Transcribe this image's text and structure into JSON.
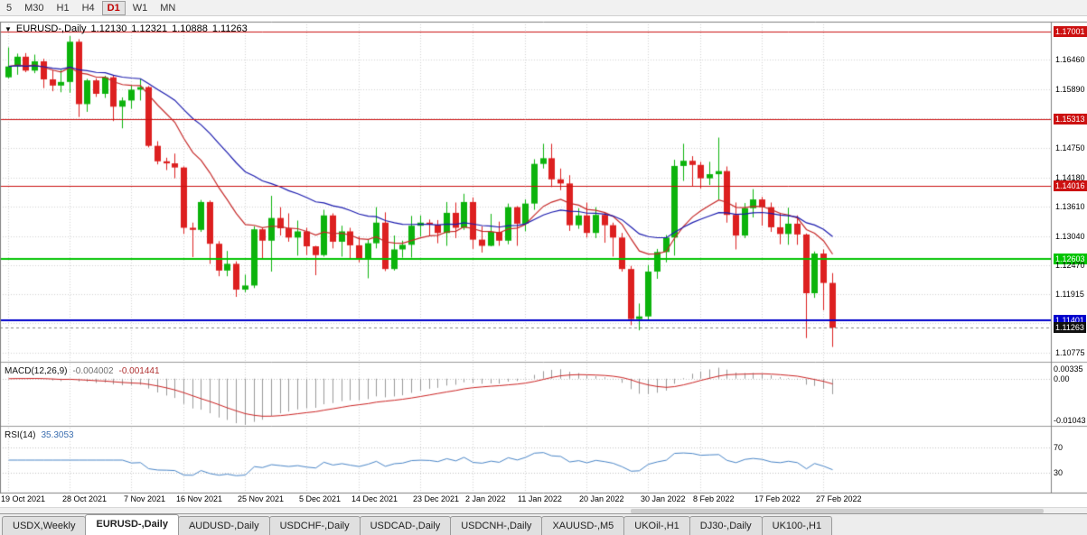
{
  "toolbar": {
    "timeframes": [
      {
        "label": "5",
        "active": false
      },
      {
        "label": "M30",
        "active": false
      },
      {
        "label": "H1",
        "active": false
      },
      {
        "label": "H4",
        "active": false
      },
      {
        "label": "D1",
        "active": true
      },
      {
        "label": "W1",
        "active": false
      },
      {
        "label": "MN",
        "active": false
      }
    ]
  },
  "chart": {
    "marker_icon": "▼",
    "title": "EURUSD-,Daily",
    "open": "1.12130",
    "high": "1.12321",
    "low": "1.10888",
    "close": "1.11263"
  },
  "price_axis": {
    "labels": [
      {
        "text": "1.17001",
        "price": 1.17001,
        "style": "red"
      },
      {
        "text": "1.16460",
        "price": 1.1646,
        "style": "plain"
      },
      {
        "text": "1.15890",
        "price": 1.1589,
        "style": "plain"
      },
      {
        "text": "1.15313",
        "price": 1.15313,
        "style": "red"
      },
      {
        "text": "1.14750",
        "price": 1.1475,
        "style": "plain"
      },
      {
        "text": "1.14180",
        "price": 1.1418,
        "style": "plain"
      },
      {
        "text": "1.14016",
        "price": 1.14016,
        "style": "red"
      },
      {
        "text": "1.13610",
        "price": 1.1361,
        "style": "plain"
      },
      {
        "text": "1.13040",
        "price": 1.1304,
        "style": "plain"
      },
      {
        "text": "1.12603",
        "price": 1.12603,
        "style": "green"
      },
      {
        "text": "1.12470",
        "price": 1.1247,
        "style": "plain"
      },
      {
        "text": "1.11915",
        "price": 1.11915,
        "style": "plain"
      },
      {
        "text": "1.11401",
        "price": 1.11401,
        "style": "blue"
      },
      {
        "text": "1.11263",
        "price": 1.11263,
        "style": "current"
      },
      {
        "text": "1.10775",
        "price": 1.10775,
        "style": "plain"
      }
    ],
    "grid_prices": [
      1.1646,
      1.1589,
      1.1532,
      1.1475,
      1.1418,
      1.1361,
      1.1304,
      1.1247,
      1.11915,
      1.11345,
      1.10775
    ]
  },
  "lines": {
    "horizontal": [
      {
        "price": 1.17001,
        "color": "#cc1111",
        "width": 1
      },
      {
        "price": 1.15313,
        "color": "#cc1111",
        "width": 1
      },
      {
        "price": 1.14016,
        "color": "#cc1111",
        "width": 1
      },
      {
        "price": 1.12603,
        "color": "#00c400",
        "width": 2
      },
      {
        "price": 1.11401,
        "color": "#0000cc",
        "width": 2
      }
    ],
    "current_price": {
      "value": 1.11263,
      "text": "1.11263"
    }
  },
  "macd": {
    "name": "MACD(12,26,9)",
    "value": "-0.004002",
    "signal": "-0.001441",
    "axis": {
      "max_text": "0.00335",
      "zero_text": "0.00",
      "min_text": "-0.01043",
      "max": 0.00335,
      "min": -0.01043
    },
    "colors": {
      "histogram": "#999999",
      "signal": "#cc2222"
    }
  },
  "rsi": {
    "name": "RSI(14)",
    "value": "35.3053",
    "color": "#4a86c8",
    "levels": [
      {
        "text": "70",
        "value": 70
      },
      {
        "text": "30",
        "value": 30
      }
    ]
  },
  "date_axis": {
    "ticks": [
      {
        "label": "19 Oct 2021",
        "index": 0
      },
      {
        "label": "28 Oct 2021",
        "index": 7
      },
      {
        "label": "7 Nov 2021",
        "index": 14
      },
      {
        "label": "16 Nov 2021",
        "index": 20
      },
      {
        "label": "25 Nov 2021",
        "index": 27
      },
      {
        "label": "5 Dec 2021",
        "index": 34
      },
      {
        "label": "14 Dec 2021",
        "index": 40
      },
      {
        "label": "23 Dec 2021",
        "index": 47
      },
      {
        "label": "2 Jan 2022",
        "index": 53
      },
      {
        "label": "11 Jan 2022",
        "index": 59
      },
      {
        "label": "20 Jan 2022",
        "index": 66
      },
      {
        "label": "30 Jan 2022",
        "index": 73
      },
      {
        "label": "8 Feb 2022",
        "index": 79
      },
      {
        "label": "17 Feb 2022",
        "index": 86
      },
      {
        "label": "27 Feb 2022",
        "index": 93
      }
    ]
  },
  "tabs": [
    {
      "label": "USDX,Weekly",
      "active": false
    },
    {
      "label": "EURUSD-,Daily",
      "active": true
    },
    {
      "label": "AUDUSD-,Daily",
      "active": false
    },
    {
      "label": "USDCHF-,Daily",
      "active": false
    },
    {
      "label": "USDCAD-,Daily",
      "active": false
    },
    {
      "label": "USDCNH-,Daily",
      "active": false
    },
    {
      "label": "XAUUSD-,M5",
      "active": false
    },
    {
      "label": "UKOil-,H1",
      "active": false
    },
    {
      "label": "DJ30-,Daily",
      "active": false
    },
    {
      "label": "UK100-,H1",
      "active": false
    }
  ],
  "chart_data": {
    "type": "candlestick",
    "symbol": "EURUSD-",
    "timeframe": "Daily",
    "y_range": [
      1.106,
      1.172
    ],
    "up_color": "#0cb30c",
    "down_color": "#dd2020",
    "ma_lines": [
      {
        "period": 12,
        "color": "#c62828"
      },
      {
        "period": 26,
        "color": "#1a1aae"
      }
    ],
    "dates": [
      "2021-10-19",
      "2021-10-20",
      "2021-10-21",
      "2021-10-22",
      "2021-10-25",
      "2021-10-26",
      "2021-10-27",
      "2021-10-28",
      "2021-10-29",
      "2021-11-01",
      "2021-11-02",
      "2021-11-03",
      "2021-11-04",
      "2021-11-05",
      "2021-11-08",
      "2021-11-09",
      "2021-11-10",
      "2021-11-11",
      "2021-11-12",
      "2021-11-15",
      "2021-11-16",
      "2021-11-17",
      "2021-11-18",
      "2021-11-19",
      "2021-11-22",
      "2021-11-23",
      "2021-11-24",
      "2021-11-25",
      "2021-11-26",
      "2021-11-29",
      "2021-11-30",
      "2021-12-01",
      "2021-12-02",
      "2021-12-03",
      "2021-12-06",
      "2021-12-07",
      "2021-12-08",
      "2021-12-09",
      "2021-12-10",
      "2021-12-13",
      "2021-12-14",
      "2021-12-15",
      "2021-12-16",
      "2021-12-17",
      "2021-12-20",
      "2021-12-21",
      "2021-12-22",
      "2021-12-23",
      "2021-12-27",
      "2021-12-28",
      "2021-12-29",
      "2021-12-30",
      "2021-12-31",
      "2022-01-03",
      "2022-01-04",
      "2022-01-05",
      "2022-01-06",
      "2022-01-07",
      "2022-01-10",
      "2022-01-11",
      "2022-01-12",
      "2022-01-13",
      "2022-01-14",
      "2022-01-17",
      "2022-01-18",
      "2022-01-19",
      "2022-01-20",
      "2022-01-21",
      "2022-01-24",
      "2022-01-25",
      "2022-01-26",
      "2022-01-27",
      "2022-01-28",
      "2022-01-31",
      "2022-02-01",
      "2022-02-02",
      "2022-02-03",
      "2022-02-04",
      "2022-02-07",
      "2022-02-08",
      "2022-02-09",
      "2022-02-10",
      "2022-02-11",
      "2022-02-14",
      "2022-02-15",
      "2022-02-16",
      "2022-02-17",
      "2022-02-18",
      "2022-02-21",
      "2022-02-22",
      "2022-02-23",
      "2022-02-24",
      "2022-02-25",
      "2022-02-28",
      "2022-03-01"
    ],
    "ohlc": [
      [
        1.1612,
        1.167,
        1.161,
        1.1633
      ],
      [
        1.1633,
        1.1658,
        1.1617,
        1.1652
      ],
      [
        1.1652,
        1.1659,
        1.1622,
        1.1625
      ],
      [
        1.1625,
        1.1656,
        1.162,
        1.1643
      ],
      [
        1.1643,
        1.1648,
        1.1591,
        1.1608
      ],
      [
        1.1608,
        1.1626,
        1.1585,
        1.1596
      ],
      [
        1.1596,
        1.1626,
        1.1583,
        1.1603
      ],
      [
        1.1603,
        1.1692,
        1.1582,
        1.1681
      ],
      [
        1.1681,
        1.1686,
        1.1535,
        1.156
      ],
      [
        1.156,
        1.1609,
        1.1545,
        1.1606
      ],
      [
        1.1606,
        1.161,
        1.1574,
        1.158
      ],
      [
        1.158,
        1.1615,
        1.1572,
        1.1612
      ],
      [
        1.1612,
        1.1616,
        1.1527,
        1.1555
      ],
      [
        1.1555,
        1.1573,
        1.1513,
        1.1567
      ],
      [
        1.1567,
        1.1596,
        1.1551,
        1.1588
      ],
      [
        1.1588,
        1.1608,
        1.1567,
        1.1593
      ],
      [
        1.1593,
        1.1595,
        1.1476,
        1.1479
      ],
      [
        1.1479,
        1.1488,
        1.1443,
        1.1449
      ],
      [
        1.1449,
        1.1456,
        1.1432,
        1.1445
      ],
      [
        1.1445,
        1.1464,
        1.1416,
        1.1437
      ],
      [
        1.1437,
        1.1439,
        1.1308,
        1.132
      ],
      [
        1.132,
        1.133,
        1.1263,
        1.1316
      ],
      [
        1.1316,
        1.1374,
        1.1312,
        1.137
      ],
      [
        1.137,
        1.1373,
        1.125,
        1.1289
      ],
      [
        1.1289,
        1.1294,
        1.1226,
        1.1237
      ],
      [
        1.1237,
        1.1275,
        1.1226,
        1.125
      ],
      [
        1.125,
        1.1255,
        1.1186,
        1.12
      ],
      [
        1.12,
        1.1229,
        1.1195,
        1.1208
      ],
      [
        1.1208,
        1.1323,
        1.1203,
        1.1317
      ],
      [
        1.1317,
        1.132,
        1.1258,
        1.1295
      ],
      [
        1.1295,
        1.1382,
        1.1235,
        1.1339
      ],
      [
        1.1339,
        1.136,
        1.1305,
        1.1319
      ],
      [
        1.1319,
        1.1348,
        1.1293,
        1.1301
      ],
      [
        1.1301,
        1.1334,
        1.1266,
        1.1313
      ],
      [
        1.1313,
        1.132,
        1.1267,
        1.1284
      ],
      [
        1.1284,
        1.1285,
        1.1228,
        1.1267
      ],
      [
        1.1267,
        1.1355,
        1.1264,
        1.1344
      ],
      [
        1.1344,
        1.1348,
        1.128,
        1.1293
      ],
      [
        1.1293,
        1.1324,
        1.1264,
        1.1313
      ],
      [
        1.1313,
        1.132,
        1.126,
        1.1286
      ],
      [
        1.1286,
        1.1303,
        1.1253,
        1.126
      ],
      [
        1.126,
        1.1298,
        1.1222,
        1.129
      ],
      [
        1.129,
        1.136,
        1.128,
        1.133
      ],
      [
        1.133,
        1.135,
        1.1236,
        1.124
      ],
      [
        1.124,
        1.1305,
        1.1237,
        1.1278
      ],
      [
        1.1278,
        1.1295,
        1.1262,
        1.1287
      ],
      [
        1.1287,
        1.1343,
        1.1262,
        1.1324
      ],
      [
        1.1324,
        1.1344,
        1.1303,
        1.133
      ],
      [
        1.133,
        1.1336,
        1.1304,
        1.1326
      ],
      [
        1.1326,
        1.1335,
        1.129,
        1.131
      ],
      [
        1.131,
        1.137,
        1.1285,
        1.1349
      ],
      [
        1.1349,
        1.1369,
        1.13,
        1.132
      ],
      [
        1.132,
        1.1386,
        1.1316,
        1.137
      ],
      [
        1.137,
        1.1379,
        1.1279,
        1.1297
      ],
      [
        1.1297,
        1.1323,
        1.1272,
        1.1285
      ],
      [
        1.1285,
        1.1347,
        1.1284,
        1.1312
      ],
      [
        1.1312,
        1.1332,
        1.1285,
        1.1295
      ],
      [
        1.1295,
        1.1367,
        1.1288,
        1.136
      ],
      [
        1.136,
        1.1362,
        1.1285,
        1.1328
      ],
      [
        1.1328,
        1.1375,
        1.1313,
        1.1367
      ],
      [
        1.1367,
        1.1453,
        1.1355,
        1.1444
      ],
      [
        1.1444,
        1.1483,
        1.1435,
        1.1455
      ],
      [
        1.1455,
        1.1483,
        1.1399,
        1.1414
      ],
      [
        1.1414,
        1.1435,
        1.1393,
        1.1406
      ],
      [
        1.1406,
        1.1422,
        1.1314,
        1.1325
      ],
      [
        1.1325,
        1.1358,
        1.1318,
        1.1344
      ],
      [
        1.1344,
        1.1369,
        1.1301,
        1.131
      ],
      [
        1.131,
        1.136,
        1.13,
        1.1345
      ],
      [
        1.1345,
        1.1349,
        1.1291,
        1.1325
      ],
      [
        1.1325,
        1.133,
        1.1264,
        1.1301
      ],
      [
        1.1301,
        1.131,
        1.1235,
        1.124
      ],
      [
        1.124,
        1.1246,
        1.1131,
        1.1143
      ],
      [
        1.1143,
        1.1173,
        1.1121,
        1.1148
      ],
      [
        1.1148,
        1.1248,
        1.1141,
        1.1235
      ],
      [
        1.1235,
        1.1279,
        1.1221,
        1.1273
      ],
      [
        1.1273,
        1.1306,
        1.1253,
        1.1301
      ],
      [
        1.1301,
        1.1452,
        1.1266,
        1.144
      ],
      [
        1.144,
        1.1483,
        1.1411,
        1.145
      ],
      [
        1.145,
        1.1459,
        1.14,
        1.1442
      ],
      [
        1.1442,
        1.1448,
        1.1396,
        1.1416
      ],
      [
        1.1416,
        1.1448,
        1.1403,
        1.1424
      ],
      [
        1.1424,
        1.1495,
        1.1375,
        1.143
      ],
      [
        1.143,
        1.1439,
        1.133,
        1.1345
      ],
      [
        1.1345,
        1.1369,
        1.1278,
        1.1305
      ],
      [
        1.1305,
        1.1368,
        1.13,
        1.1358
      ],
      [
        1.1358,
        1.1395,
        1.134,
        1.1375
      ],
      [
        1.1375,
        1.138,
        1.1324,
        1.136
      ],
      [
        1.136,
        1.1369,
        1.1312,
        1.1321
      ],
      [
        1.1321,
        1.1349,
        1.1288,
        1.1308
      ],
      [
        1.1308,
        1.1359,
        1.1287,
        1.1328
      ],
      [
        1.1328,
        1.1344,
        1.1287,
        1.1307
      ],
      [
        1.1307,
        1.1309,
        1.1106,
        1.1193
      ],
      [
        1.1193,
        1.1274,
        1.1184,
        1.127
      ],
      [
        1.127,
        1.1278,
        1.116,
        1.1213
      ],
      [
        1.1213,
        1.12321,
        1.10888,
        1.11263
      ]
    ]
  }
}
